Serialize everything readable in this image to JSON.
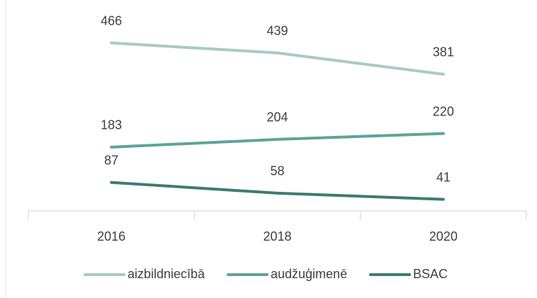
{
  "chart_data": {
    "type": "line",
    "categories": [
      "2016",
      "2018",
      "2020"
    ],
    "series": [
      {
        "name": "aizbildniecībā",
        "color": "#a9cac6",
        "values": [
          466,
          439,
          381
        ]
      },
      {
        "name": "audžuģimenē",
        "color": "#5fa39a",
        "values": [
          183,
          204,
          220
        ]
      },
      {
        "name": "BSAC",
        "color": "#3f7b73",
        "values": [
          87,
          58,
          41
        ]
      }
    ],
    "ylim": [
      0,
      500
    ],
    "grid": false,
    "legend": "bottom"
  }
}
